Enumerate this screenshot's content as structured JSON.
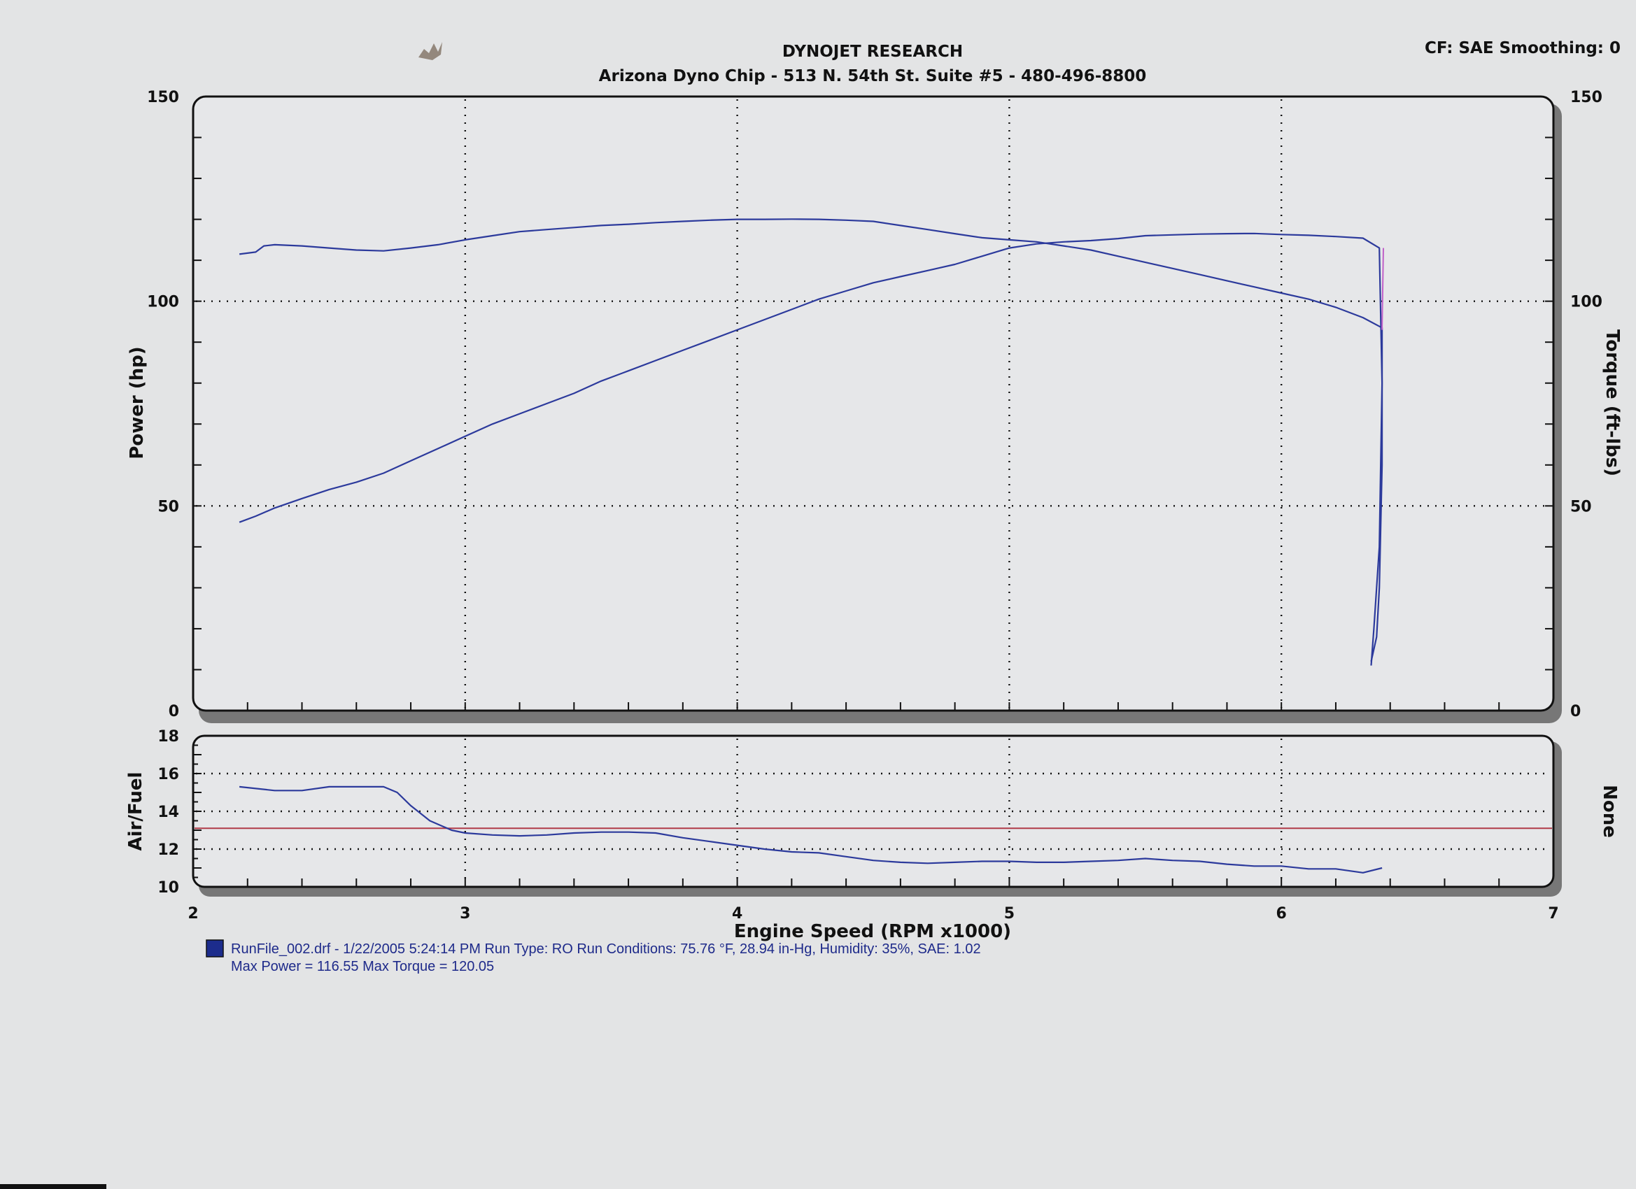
{
  "header": {
    "title": "DYNOJET RESEARCH",
    "subtitle": "Arizona Dyno Chip - 513 N. 54th St. Suite #5 - 480-496-8800",
    "cf_smoothing": "CF: SAE  Smoothing: 0"
  },
  "colors": {
    "curve": "#2c3a9c",
    "target_line": "#b03a48",
    "legend_swatch": "#1c2c8c",
    "shutdown_line": "#c060c8"
  },
  "chart_data": [
    {
      "type": "line",
      "title": "DYNOJET RESEARCH",
      "xlabel": "Engine Speed (RPM x1000)",
      "ylabel": "Power (hp)",
      "y2label": "Torque (ft-lbs)",
      "xlim": [
        2,
        7
      ],
      "ylim": [
        0,
        150
      ],
      "y2lim": [
        0,
        150
      ],
      "x_ticks": [
        "2",
        "3",
        "4",
        "5",
        "6",
        "7"
      ],
      "y_ticks": [
        "0",
        "50",
        "100",
        "150"
      ],
      "y2_ticks": [
        "0",
        "50",
        "100",
        "150"
      ],
      "grid": true,
      "series": [
        {
          "name": "Power (hp)",
          "x": [
            2.17,
            2.23,
            2.3,
            2.4,
            2.5,
            2.6,
            2.7,
            2.8,
            2.9,
            3.0,
            3.1,
            3.2,
            3.3,
            3.4,
            3.5,
            3.6,
            3.7,
            3.8,
            3.9,
            4.0,
            4.1,
            4.2,
            4.3,
            4.4,
            4.5,
            4.6,
            4.7,
            4.8,
            4.9,
            5.0,
            5.1,
            5.2,
            5.3,
            5.4,
            5.5,
            5.6,
            5.7,
            5.8,
            5.9,
            6.0,
            6.1,
            6.2,
            6.3,
            6.36,
            6.37,
            6.36,
            6.34,
            6.33
          ],
          "y": [
            46,
            47.5,
            49.5,
            51.8,
            54,
            55.8,
            58,
            61,
            64,
            67,
            70,
            72.5,
            75,
            77.5,
            80.5,
            83,
            85.5,
            88,
            90.5,
            93,
            95.5,
            98,
            100.5,
            102.5,
            104.5,
            106,
            107.5,
            109,
            111,
            113,
            114,
            114.5,
            114.8,
            115.3,
            116,
            116.2,
            116.4,
            116.5,
            116.55,
            116.3,
            116.1,
            115.8,
            115.4,
            113,
            80,
            40,
            20,
            11
          ]
        },
        {
          "name": "Torque (ft-lbs)",
          "x": [
            2.17,
            2.23,
            2.26,
            2.3,
            2.4,
            2.5,
            2.6,
            2.7,
            2.8,
            2.9,
            3.0,
            3.1,
            3.2,
            3.3,
            3.4,
            3.5,
            3.6,
            3.7,
            3.8,
            3.9,
            4.0,
            4.1,
            4.2,
            4.3,
            4.4,
            4.5,
            4.6,
            4.7,
            4.8,
            4.9,
            5.0,
            5.1,
            5.2,
            5.3,
            5.4,
            5.5,
            5.6,
            5.7,
            5.8,
            5.9,
            6.0,
            6.1,
            6.2,
            6.3,
            6.37,
            6.37,
            6.36,
            6.35,
            6.33
          ],
          "y": [
            111.5,
            112,
            113.5,
            113.8,
            113.5,
            113,
            112.5,
            112.3,
            113,
            113.8,
            115,
            116,
            117,
            117.5,
            118,
            118.5,
            118.8,
            119.2,
            119.5,
            119.8,
            120,
            120,
            120.05,
            120,
            119.8,
            119.5,
            118.5,
            117.5,
            116.5,
            115.5,
            115,
            114.5,
            113.5,
            112.5,
            111,
            109.5,
            108,
            106.5,
            105,
            103.5,
            102,
            100.5,
            98.5,
            96,
            93.5,
            60,
            30,
            18,
            12
          ]
        }
      ]
    },
    {
      "type": "line",
      "ylabel": "Air/Fuel",
      "y2label": "None",
      "xlim": [
        2,
        7
      ],
      "ylim": [
        10,
        18
      ],
      "y_ticks": [
        "10",
        "12",
        "14",
        "16",
        "18"
      ],
      "grid": true,
      "reference_line": 13.1,
      "series": [
        {
          "name": "Air/Fuel",
          "x": [
            2.17,
            2.3,
            2.4,
            2.5,
            2.6,
            2.7,
            2.75,
            2.8,
            2.87,
            2.95,
            3.0,
            3.1,
            3.2,
            3.3,
            3.4,
            3.5,
            3.6,
            3.7,
            3.8,
            3.9,
            4.0,
            4.1,
            4.2,
            4.3,
            4.4,
            4.5,
            4.6,
            4.7,
            4.8,
            4.9,
            5.0,
            5.1,
            5.2,
            5.3,
            5.4,
            5.5,
            5.6,
            5.7,
            5.8,
            5.9,
            6.0,
            6.1,
            6.2,
            6.3,
            6.37
          ],
          "y": [
            15.3,
            15.1,
            15.1,
            15.3,
            15.3,
            15.3,
            15.0,
            14.3,
            13.5,
            13.0,
            12.85,
            12.75,
            12.7,
            12.75,
            12.85,
            12.9,
            12.9,
            12.85,
            12.6,
            12.4,
            12.2,
            12.0,
            11.85,
            11.8,
            11.6,
            11.4,
            11.3,
            11.25,
            11.3,
            11.35,
            11.35,
            11.3,
            11.3,
            11.35,
            11.4,
            11.5,
            11.4,
            11.35,
            11.2,
            11.1,
            11.1,
            10.95,
            10.95,
            10.75,
            11.0
          ]
        }
      ]
    }
  ],
  "legend": {
    "line1": "RunFile_002.drf - 1/22/2005 5:24:14 PM  Run Type: RO  Run Conditions: 75.76 °F, 28.94 in-Hg,  Humidity:  35%, SAE: 1.02",
    "line2": "Max Power = 116.55  Max Torque = 120.05"
  }
}
